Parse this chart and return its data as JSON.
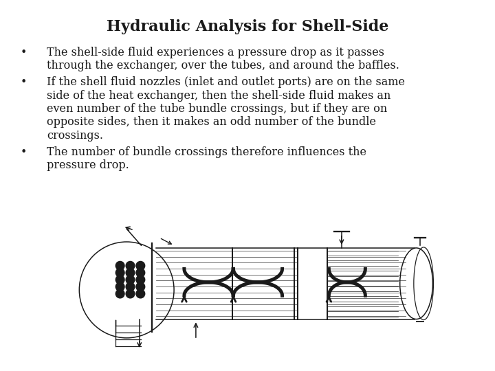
{
  "title": "Hydraulic Analysis for Shell-Side",
  "title_fontsize": 16,
  "title_fontweight": "bold",
  "body_fontsize": 11.5,
  "background_color": "#ffffff",
  "text_color": "#1a1a1a",
  "bullet1": "The shell-side fluid experiences a pressure drop as it passes through the exchanger, over the tubes, and around the baffles.",
  "bullet1_lines": [
    "The shell-side fluid experiences a pressure drop as it passes",
    "through the exchanger, over the tubes, and around the baffles."
  ],
  "bullet2_lines": [
    "If the shell fluid nozzles (inlet and outlet ports) are on the same",
    "side of the heat exchanger, then the shell-side fluid makes an",
    "even number of the tube bundle crossings, but if they are on",
    "opposite sides, then it makes an odd number of the bundle",
    "crossings."
  ],
  "bullet3_lines": [
    "The number of bundle crossings therefore influences the",
    "pressure drop."
  ],
  "figsize": [
    7.2,
    5.4
  ],
  "dpi": 100
}
